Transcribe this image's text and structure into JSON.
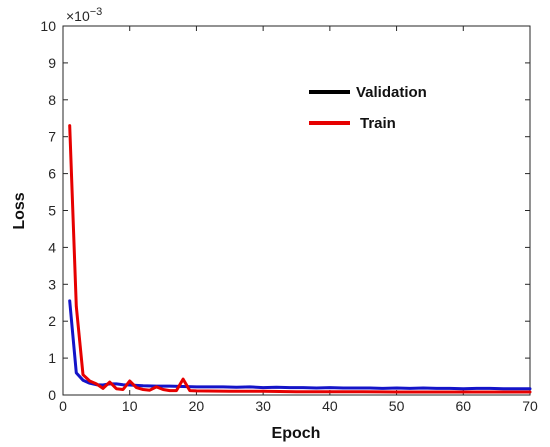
{
  "chart_data": {
    "type": "line",
    "xlabel": "Epoch",
    "ylabel": "Loss",
    "y_multiplier_label": "×10",
    "y_multiplier_exp": "−3",
    "xlim": [
      0,
      70
    ],
    "ylim": [
      0,
      10
    ],
    "x_ticks": [
      0,
      10,
      20,
      30,
      40,
      50,
      60,
      70
    ],
    "y_ticks": [
      0,
      1,
      2,
      3,
      4,
      5,
      6,
      7,
      8,
      9,
      10
    ],
    "grid": false,
    "legend_position": "upper-right",
    "series": [
      {
        "name": "Validation",
        "legend_color": "#000000",
        "color": "#1414c8",
        "x": [
          1,
          2,
          3,
          4,
          5,
          6,
          7,
          8,
          9,
          10,
          12,
          14,
          16,
          18,
          20,
          22,
          24,
          26,
          28,
          30,
          32,
          34,
          36,
          38,
          40,
          42,
          44,
          46,
          48,
          50,
          52,
          54,
          56,
          58,
          60,
          62,
          64,
          66,
          68,
          70
        ],
        "values": [
          2.55,
          0.6,
          0.4,
          0.32,
          0.28,
          0.27,
          0.3,
          0.3,
          0.28,
          0.27,
          0.25,
          0.24,
          0.24,
          0.23,
          0.22,
          0.22,
          0.22,
          0.21,
          0.22,
          0.2,
          0.21,
          0.2,
          0.2,
          0.19,
          0.2,
          0.19,
          0.19,
          0.19,
          0.18,
          0.19,
          0.18,
          0.19,
          0.18,
          0.18,
          0.17,
          0.18,
          0.18,
          0.17,
          0.17,
          0.17
        ]
      },
      {
        "name": "Train",
        "legend_color": "#e60000",
        "color": "#e60000",
        "x": [
          1,
          2,
          3,
          4,
          5,
          6,
          7,
          8,
          9,
          10,
          11,
          12,
          13,
          14,
          15,
          16,
          17,
          18,
          19,
          20,
          25,
          30,
          35,
          40,
          45,
          50,
          55,
          60,
          65,
          70
        ],
        "values": [
          7.3,
          2.4,
          0.55,
          0.38,
          0.3,
          0.18,
          0.35,
          0.17,
          0.15,
          0.38,
          0.2,
          0.15,
          0.13,
          0.22,
          0.15,
          0.12,
          0.12,
          0.43,
          0.12,
          0.11,
          0.1,
          0.1,
          0.09,
          0.09,
          0.09,
          0.08,
          0.08,
          0.08,
          0.08,
          0.08
        ]
      }
    ]
  }
}
